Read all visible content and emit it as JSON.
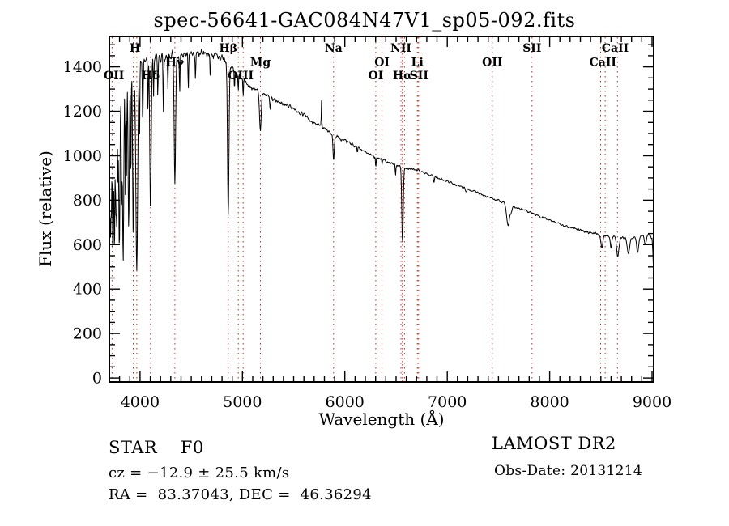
{
  "title": "spec-56641-GAC084N47V1_sp05-092.fits",
  "axes": {
    "xlabel": "Wavelength (Å)",
    "ylabel": "Flux (relative)"
  },
  "info": {
    "class_line": "STAR    F0",
    "cz_line": "cz = −12.9 ± 25.5 km/s",
    "radec_line": "RA =  83.37043, DEC =  46.36294",
    "release_line": "LAMOST DR2",
    "obsdate_line": "Obs-Date: 20131214"
  },
  "colors": {
    "background": "#ffffff",
    "spectrum": "#000000",
    "frame": "#000000",
    "marker_line": "#aa3322",
    "halpha_line": "#cc2222",
    "text": "#000000"
  },
  "chart_data": {
    "type": "line",
    "title": "spec-56641-GAC084N47V1_sp05-092.fits",
    "xlabel": "Wavelength (Å)",
    "ylabel": "Flux (relative)",
    "xlim": [
      3700,
      9016
    ],
    "ylim": [
      -18,
      1537
    ],
    "x_ticks": [
      4000,
      5000,
      6000,
      7000,
      8000,
      9000
    ],
    "y_ticks": [
      0,
      200,
      400,
      600,
      800,
      1000,
      1200,
      1400
    ],
    "x_minor_step": 100,
    "y_minor_step": 50,
    "grid": false,
    "series_name": "spectrum",
    "envelope": [
      [
        3700,
        700
      ],
      [
        3708,
        1090
      ],
      [
        3715,
        1170
      ],
      [
        3725,
        1225
      ],
      [
        3740,
        1265
      ],
      [
        3760,
        1290
      ],
      [
        3790,
        1315
      ],
      [
        3830,
        1345
      ],
      [
        3870,
        1375
      ],
      [
        3910,
        1398
      ],
      [
        3960,
        1412
      ],
      [
        4000,
        1420
      ],
      [
        4060,
        1428
      ],
      [
        4120,
        1433
      ],
      [
        4180,
        1440
      ],
      [
        4240,
        1446
      ],
      [
        4300,
        1450
      ],
      [
        4360,
        1452
      ],
      [
        4420,
        1455
      ],
      [
        4480,
        1458
      ],
      [
        4540,
        1456
      ],
      [
        4600,
        1458
      ],
      [
        4660,
        1456
      ],
      [
        4720,
        1455
      ],
      [
        4780,
        1442
      ],
      [
        4840,
        1428
      ],
      [
        4880,
        1408
      ],
      [
        4920,
        1385
      ],
      [
        4960,
        1365
      ],
      [
        5000,
        1345
      ],
      [
        5050,
        1322
      ],
      [
        5100,
        1305
      ],
      [
        5150,
        1290
      ],
      [
        5200,
        1280
      ],
      [
        5260,
        1268
      ],
      [
        5320,
        1252
      ],
      [
        5380,
        1238
      ],
      [
        5440,
        1225
      ],
      [
        5500,
        1207
      ],
      [
        5560,
        1193
      ],
      [
        5620,
        1178
      ],
      [
        5680,
        1152
      ],
      [
        5740,
        1140
      ],
      [
        5800,
        1122
      ],
      [
        5860,
        1100
      ],
      [
        5920,
        1086
      ],
      [
        5980,
        1072
      ],
      [
        6040,
        1058
      ],
      [
        6100,
        1044
      ],
      [
        6160,
        1030
      ],
      [
        6220,
        1015
      ],
      [
        6280,
        998
      ],
      [
        6340,
        985
      ],
      [
        6400,
        975
      ],
      [
        6460,
        966
      ],
      [
        6520,
        955
      ],
      [
        6580,
        948
      ],
      [
        6640,
        942
      ],
      [
        6700,
        936
      ],
      [
        6760,
        926
      ],
      [
        6820,
        916
      ],
      [
        6880,
        905
      ],
      [
        6940,
        895
      ],
      [
        7000,
        884
      ],
      [
        7060,
        874
      ],
      [
        7120,
        864
      ],
      [
        7180,
        854
      ],
      [
        7240,
        843
      ],
      [
        7300,
        833
      ],
      [
        7360,
        822
      ],
      [
        7420,
        812
      ],
      [
        7480,
        801
      ],
      [
        7540,
        791
      ],
      [
        7600,
        781
      ],
      [
        7660,
        770
      ],
      [
        7720,
        760
      ],
      [
        7780,
        750
      ],
      [
        7840,
        738
      ],
      [
        7900,
        727
      ],
      [
        7960,
        717
      ],
      [
        8020,
        707
      ],
      [
        8080,
        697
      ],
      [
        8140,
        687
      ],
      [
        8200,
        678
      ],
      [
        8260,
        670
      ],
      [
        8320,
        662
      ],
      [
        8380,
        656
      ],
      [
        8440,
        650
      ],
      [
        8500,
        644
      ],
      [
        8560,
        640
      ],
      [
        8620,
        636
      ],
      [
        8680,
        633
      ],
      [
        8740,
        631
      ],
      [
        8800,
        630
      ],
      [
        8860,
        634
      ],
      [
        8920,
        640
      ],
      [
        8960,
        644
      ],
      [
        9000,
        628
      ],
      [
        9008,
        560
      ],
      [
        9016,
        462
      ]
    ],
    "absorption_lines": [
      [
        3712,
        5,
        600
      ],
      [
        3721,
        3,
        860
      ],
      [
        3734,
        5,
        530
      ],
      [
        3750,
        5,
        565
      ],
      [
        3762,
        3,
        900
      ],
      [
        3771,
        5,
        670
      ],
      [
        3784,
        3,
        950
      ],
      [
        3798,
        6,
        600
      ],
      [
        3820,
        4,
        810
      ],
      [
        3835,
        6,
        545
      ],
      [
        3856,
        3,
        840
      ],
      [
        3868,
        3,
        900
      ],
      [
        3889,
        6,
        670
      ],
      [
        3910,
        3,
        880
      ],
      [
        3933,
        6,
        625
      ],
      [
        3968,
        9,
        480
      ],
      [
        3995,
        3,
        1080
      ],
      [
        4026,
        4,
        1130
      ],
      [
        4077,
        3,
        1200
      ],
      [
        4102,
        7,
        740
      ],
      [
        4132,
        3,
        1260
      ],
      [
        4173,
        3,
        1280
      ],
      [
        4227,
        3,
        1190
      ],
      [
        4272,
        3,
        1290
      ],
      [
        4340,
        7,
        875
      ],
      [
        4387,
        3,
        1270
      ],
      [
        4471,
        3,
        1300
      ],
      [
        4541,
        3,
        1340
      ],
      [
        4686,
        3,
        1350
      ],
      [
        4861,
        7,
        735
      ],
      [
        4922,
        3,
        1295
      ],
      [
        4959,
        3,
        1285
      ],
      [
        5007,
        3,
        1265
      ],
      [
        5175,
        8,
        1115
      ],
      [
        5270,
        4,
        1210
      ],
      [
        5772,
        2.5,
        1245
      ],
      [
        5890,
        6,
        980
      ],
      [
        6122,
        3,
        1008
      ],
      [
        6302,
        3,
        945
      ],
      [
        6363,
        3,
        958
      ],
      [
        6495,
        3,
        918
      ],
      [
        6563,
        7,
        610
      ],
      [
        6870,
        5,
        876
      ],
      [
        7185,
        6,
        838
      ],
      [
        7594,
        13,
        685
      ],
      [
        7625,
        9,
        745
      ],
      [
        8510,
        9,
        585
      ],
      [
        8600,
        7,
        585
      ],
      [
        8665,
        11,
        548
      ],
      [
        8770,
        11,
        558
      ],
      [
        8860,
        10,
        565
      ],
      [
        8935,
        8,
        595
      ]
    ],
    "noise_regions": [
      [
        3700,
        72
      ],
      [
        3790,
        48
      ],
      [
        4000,
        30
      ],
      [
        4650,
        24
      ],
      [
        5000,
        16
      ],
      [
        5600,
        13
      ],
      [
        6100,
        10
      ],
      [
        6650,
        8
      ],
      [
        7300,
        8
      ],
      [
        8100,
        9
      ]
    ],
    "line_markers": [
      {
        "wl": 3727
      },
      {
        "wl": 3933
      },
      {
        "wl": 3968
      },
      {
        "wl": 4102
      },
      {
        "wl": 4340
      },
      {
        "wl": 4861
      },
      {
        "wl": 4959
      },
      {
        "wl": 5007
      },
      {
        "wl": 5175
      },
      {
        "wl": 5890
      },
      {
        "wl": 6302
      },
      {
        "wl": 6363
      },
      {
        "wl": 6548
      },
      {
        "wl": 6563,
        "emphasis": true
      },
      {
        "wl": 6583
      },
      {
        "wl": 6708
      },
      {
        "wl": 6716
      },
      {
        "wl": 6731
      },
      {
        "wl": 7440
      },
      {
        "wl": 7828
      },
      {
        "wl": 8498
      },
      {
        "wl": 8542
      },
      {
        "wl": 8662
      }
    ],
    "spectral_labels": [
      {
        "text": "H",
        "wl": 3950,
        "row": 1
      },
      {
        "text": "Hβ",
        "wl": 4861,
        "row": 1
      },
      {
        "text": "Na",
        "wl": 5890,
        "row": 1
      },
      {
        "text": "NII",
        "wl": 6548,
        "row": 1
      },
      {
        "text": "SII",
        "wl": 7828,
        "row": 1
      },
      {
        "text": "CaII",
        "wl": 8640,
        "row": 1
      },
      {
        "text": "Hγ",
        "wl": 4340,
        "row": 2
      },
      {
        "text": "Mg",
        "wl": 5175,
        "row": 2
      },
      {
        "text": "OI",
        "wl": 6363,
        "row": 2
      },
      {
        "text": "Li",
        "wl": 6708,
        "row": 2
      },
      {
        "text": "OII",
        "wl": 7440,
        "row": 2
      },
      {
        "text": "CaII",
        "wl": 8520,
        "row": 2
      },
      {
        "text": "OII",
        "wl": 3745,
        "row": 3
      },
      {
        "text": "Hδ",
        "wl": 4102,
        "row": 3
      },
      {
        "text": "OIII",
        "wl": 4983,
        "row": 3
      },
      {
        "text": "OI",
        "wl": 6302,
        "row": 3
      },
      {
        "text": "Hα",
        "wl": 6563,
        "row": 3
      },
      {
        "text": "SII",
        "wl": 6724,
        "row": 3
      }
    ]
  }
}
